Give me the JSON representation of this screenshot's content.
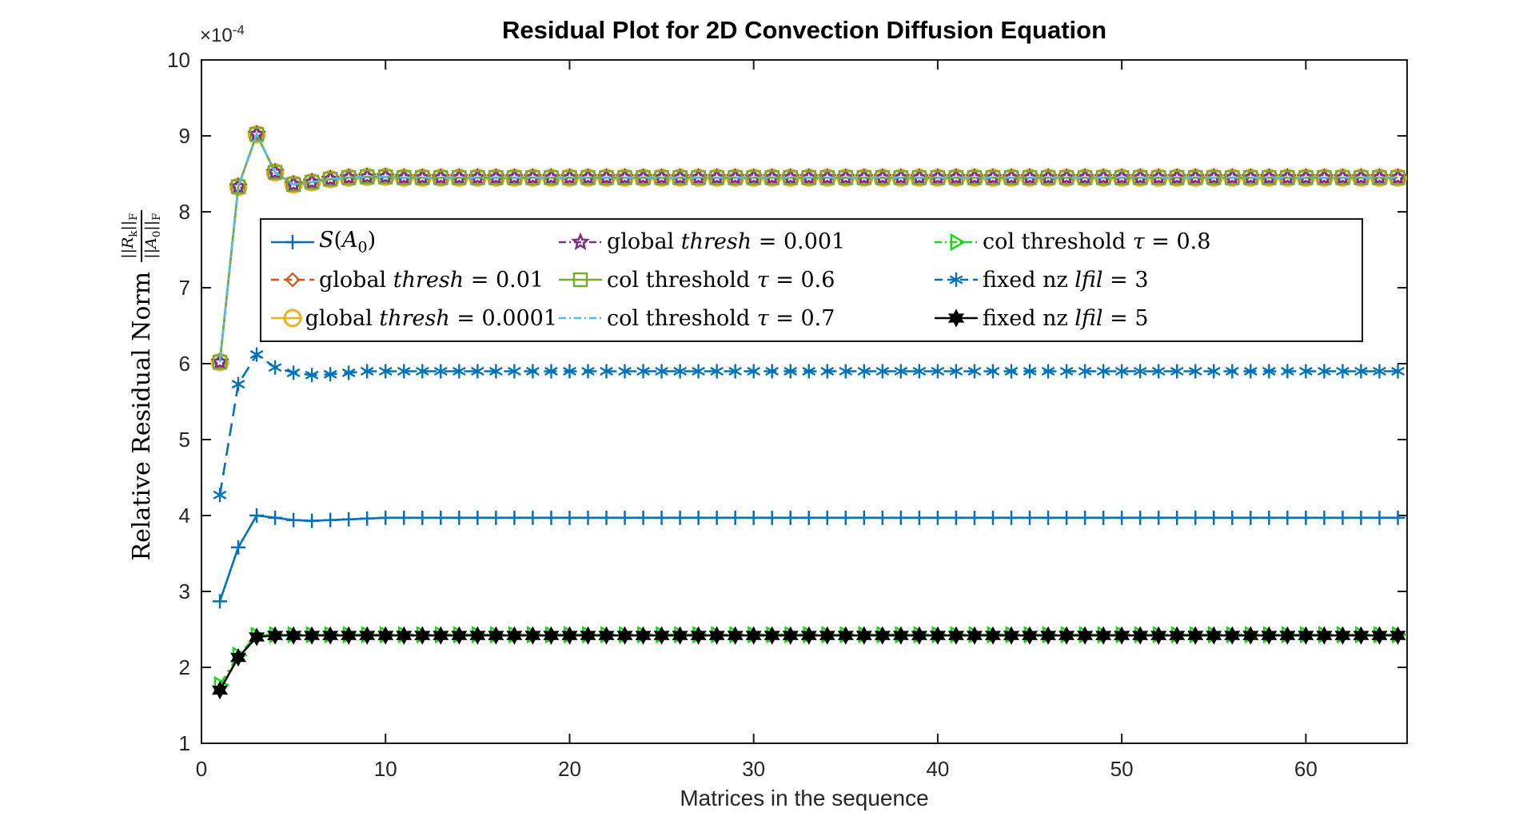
{
  "figure": {
    "background": "#ffffff",
    "axis_color": "#1a1a1a"
  },
  "chart_data": {
    "type": "line",
    "title": "Residual Plot for 2D Convection Diffusion Equation",
    "xlabel": "Matrices in the sequence",
    "ylabel": "Relative Residual Norm",
    "ylabel_fraction": {
      "numerator_parts": [
        {
          "t": "||"
        },
        {
          "i": "R"
        },
        {
          "sub": "k"
        },
        {
          "t": "||"
        },
        {
          "sub": "F"
        }
      ],
      "denominator_parts": [
        {
          "t": "||"
        },
        {
          "i": "A"
        },
        {
          "sub": "0"
        },
        {
          "t": "||"
        },
        {
          "sub": "F"
        }
      ]
    },
    "y_scale": {
      "times": "×10",
      "exponent": "-4"
    },
    "xlim": [
      0,
      65.5
    ],
    "ylim": [
      1,
      10
    ],
    "xticks": [
      0,
      10,
      20,
      30,
      40,
      50,
      60
    ],
    "yticks": [
      1,
      2,
      3,
      4,
      5,
      6,
      7,
      8,
      9,
      10
    ],
    "grid": false,
    "legend_position": "upper-center-inside",
    "legend_columns": 3,
    "n_points": 65,
    "x_start": 1,
    "series": [
      {
        "id": "s-a0",
        "name": "S(A_0)",
        "name_parts": [
          {
            "i": "S"
          },
          {
            "t": "("
          },
          {
            "i": "A"
          },
          {
            "sub": "0"
          },
          {
            "t": ")"
          }
        ],
        "color": "#0072BD",
        "line": "solid",
        "marker": "plus",
        "values_head": [
          2.87,
          3.58,
          4.0,
          3.97,
          3.94,
          3.93,
          3.94,
          3.95,
          3.96,
          3.97
        ],
        "steady_value": 3.97
      },
      {
        "id": "global-thresh-0.01",
        "name": "global thresh = 0.01",
        "name_parts": [
          {
            "t": "global "
          },
          {
            "i": "thresh"
          },
          {
            "t": " = 0.01"
          }
        ],
        "color": "#D95319",
        "line": "dashed",
        "marker": "diamond",
        "values_head": [
          6.02,
          8.33,
          9.02,
          8.52,
          8.36,
          8.39,
          8.43,
          8.45,
          8.46,
          8.46
        ],
        "steady_value": 8.45
      },
      {
        "id": "global-thresh-0.0001",
        "name": "global thresh = 0.0001",
        "name_parts": [
          {
            "t": "global "
          },
          {
            "i": "thresh"
          },
          {
            "t": " = 0.0001"
          }
        ],
        "color": "#EDB120",
        "line": "solid",
        "marker": "circle",
        "values_head": [
          6.02,
          8.33,
          9.02,
          8.52,
          8.36,
          8.39,
          8.43,
          8.45,
          8.46,
          8.46
        ],
        "steady_value": 8.45
      },
      {
        "id": "global-thresh-0.001",
        "name": "global thresh = 0.001",
        "name_parts": [
          {
            "t": "global "
          },
          {
            "i": "thresh"
          },
          {
            "t": " = 0.001"
          }
        ],
        "color": "#7E2F8E",
        "line": "dashdot",
        "marker": "pentagram",
        "values_head": [
          6.02,
          8.33,
          9.02,
          8.52,
          8.36,
          8.39,
          8.43,
          8.45,
          8.46,
          8.46
        ],
        "steady_value": 8.45
      },
      {
        "id": "col-threshold-0.6",
        "name": "col threshold τ = 0.6",
        "name_parts": [
          {
            "t": "col threshold "
          },
          {
            "i": "τ"
          },
          {
            "t": " = 0.6"
          }
        ],
        "color": "#77AC30",
        "line": "solid",
        "marker": "square",
        "values_head": [
          6.02,
          8.33,
          9.02,
          8.52,
          8.36,
          8.39,
          8.43,
          8.45,
          8.46,
          8.46
        ],
        "steady_value": 8.45
      },
      {
        "id": "col-threshold-0.7",
        "name": "col threshold τ = 0.7",
        "name_parts": [
          {
            "t": "col threshold "
          },
          {
            "i": "τ"
          },
          {
            "t": " = 0.7"
          }
        ],
        "color": "#4DBEEE",
        "line": "dashdot",
        "marker": "none",
        "values_head": [
          6.02,
          8.33,
          9.02,
          8.52,
          8.36,
          8.39,
          8.43,
          8.45,
          8.46,
          8.46
        ],
        "steady_value": 8.45
      },
      {
        "id": "col-threshold-0.8",
        "name": "col threshold τ = 0.8",
        "name_parts": [
          {
            "t": "col threshold "
          },
          {
            "i": "τ"
          },
          {
            "t": " = 0.8"
          }
        ],
        "color": "#10DC10",
        "line": "dashdot",
        "marker": "triangle-right",
        "values_head": [
          1.77,
          2.16,
          2.42,
          2.43,
          2.43,
          2.43,
          2.43,
          2.43,
          2.43,
          2.43
        ],
        "steady_value": 2.43
      },
      {
        "id": "fixed-nz-lfil-3",
        "name": "fixed nz lfil = 3",
        "name_parts": [
          {
            "t": "fixed nz "
          },
          {
            "i": "lfil"
          },
          {
            "t": " = 3"
          }
        ],
        "color": "#0072BD",
        "line": "dashed",
        "marker": "asterisk",
        "values_head": [
          4.27,
          5.73,
          6.12,
          5.95,
          5.88,
          5.85,
          5.86,
          5.88,
          5.9,
          5.9
        ],
        "steady_value": 5.9
      },
      {
        "id": "fixed-nz-lfil-5",
        "name": "fixed nz lfil = 5",
        "name_parts": [
          {
            "t": "fixed nz "
          },
          {
            "i": "lfil"
          },
          {
            "t": " = 5"
          }
        ],
        "color": "#000000",
        "line": "solid",
        "marker": "hexagram",
        "values_head": [
          1.7,
          2.13,
          2.4,
          2.42,
          2.42,
          2.42,
          2.42,
          2.42,
          2.42,
          2.42
        ],
        "steady_value": 2.42
      }
    ]
  }
}
